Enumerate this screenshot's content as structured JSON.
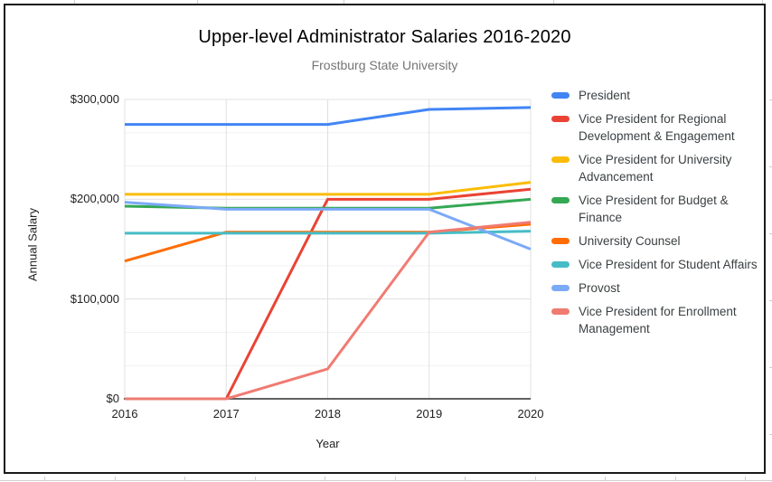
{
  "chart_data": {
    "type": "line",
    "title": "Upper-level Administrator Salaries 2016-2020",
    "subtitle": "Frostburg State University",
    "xlabel": "Year",
    "ylabel": "Annual Salary",
    "categories": [
      "2016",
      "2017",
      "2018",
      "2019",
      "2020"
    ],
    "series": [
      {
        "name": "President",
        "color": "#4285F4",
        "values": [
          275000,
          275000,
          275000,
          290000,
          292000
        ]
      },
      {
        "name": "Vice President for Regional Development & Engagement",
        "color": "#EA4335",
        "values": [
          0,
          0,
          200000,
          200000,
          210000
        ]
      },
      {
        "name": "Vice President for University Advancement",
        "color": "#FBBC04",
        "values": [
          205000,
          205000,
          205000,
          205000,
          217000
        ]
      },
      {
        "name": "Vice President for Budget & Finance",
        "color": "#34A853",
        "values": [
          193000,
          191000,
          191000,
          191000,
          200000
        ]
      },
      {
        "name": "University Counsel",
        "color": "#FF6D01",
        "values": [
          138000,
          167000,
          167000,
          167000,
          175000
        ]
      },
      {
        "name": "Vice President for Student Affairs",
        "color": "#46BDC6",
        "values": [
          166000,
          166000,
          166000,
          166000,
          168000
        ]
      },
      {
        "name": "Provost",
        "color": "#7BAAF7",
        "values": [
          197000,
          190000,
          190000,
          190000,
          150000
        ]
      },
      {
        "name": "Vice President for Enrollment Management",
        "color": "#F07B72",
        "values": [
          0,
          0,
          30000,
          167000,
          177000
        ]
      }
    ],
    "ylim": [
      0,
      300000
    ],
    "yticks": [
      {
        "label": "$300,000",
        "value": 300000
      },
      {
        "label": "$200,000",
        "value": 200000
      },
      {
        "label": "$100,000",
        "value": 100000
      },
      {
        "label": "$0",
        "value": 0
      }
    ],
    "grid": true,
    "legend_position": "right"
  }
}
